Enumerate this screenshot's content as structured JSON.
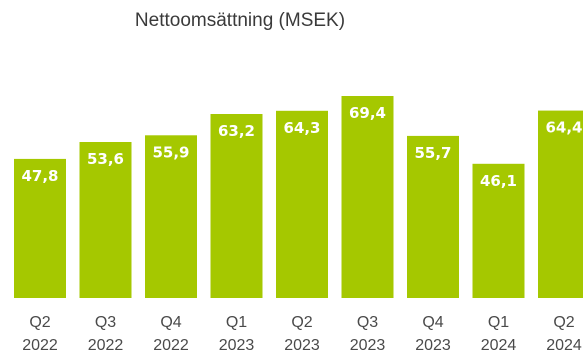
{
  "chart_data": {
    "type": "bar",
    "title": "Nettoomsättning (MSEK)",
    "categories": [
      [
        "Q2",
        "2022"
      ],
      [
        "Q3",
        "2022"
      ],
      [
        "Q4",
        "2022"
      ],
      [
        "Q1",
        "2023"
      ],
      [
        "Q2",
        "2023"
      ],
      [
        "Q3",
        "2023"
      ],
      [
        "Q4",
        "2023"
      ],
      [
        "Q1",
        "2024"
      ],
      [
        "Q2",
        "2024"
      ]
    ],
    "values": [
      47.8,
      53.6,
      55.9,
      63.2,
      64.3,
      69.4,
      55.7,
      46.1,
      64.4
    ],
    "value_labels": [
      "47,8",
      "53,6",
      "55,9",
      "63,2",
      "64,3",
      "69,4",
      "55,7",
      "46,1",
      "64,4"
    ],
    "ylim": [
      0,
      69.4
    ],
    "xlabel": "",
    "ylabel": "",
    "grid": false,
    "legend": "none",
    "bar_color": "#a5c800",
    "label_color": "#ffffff",
    "tick_color": "#4a4a4a",
    "title_color": "#3a3a3a"
  }
}
